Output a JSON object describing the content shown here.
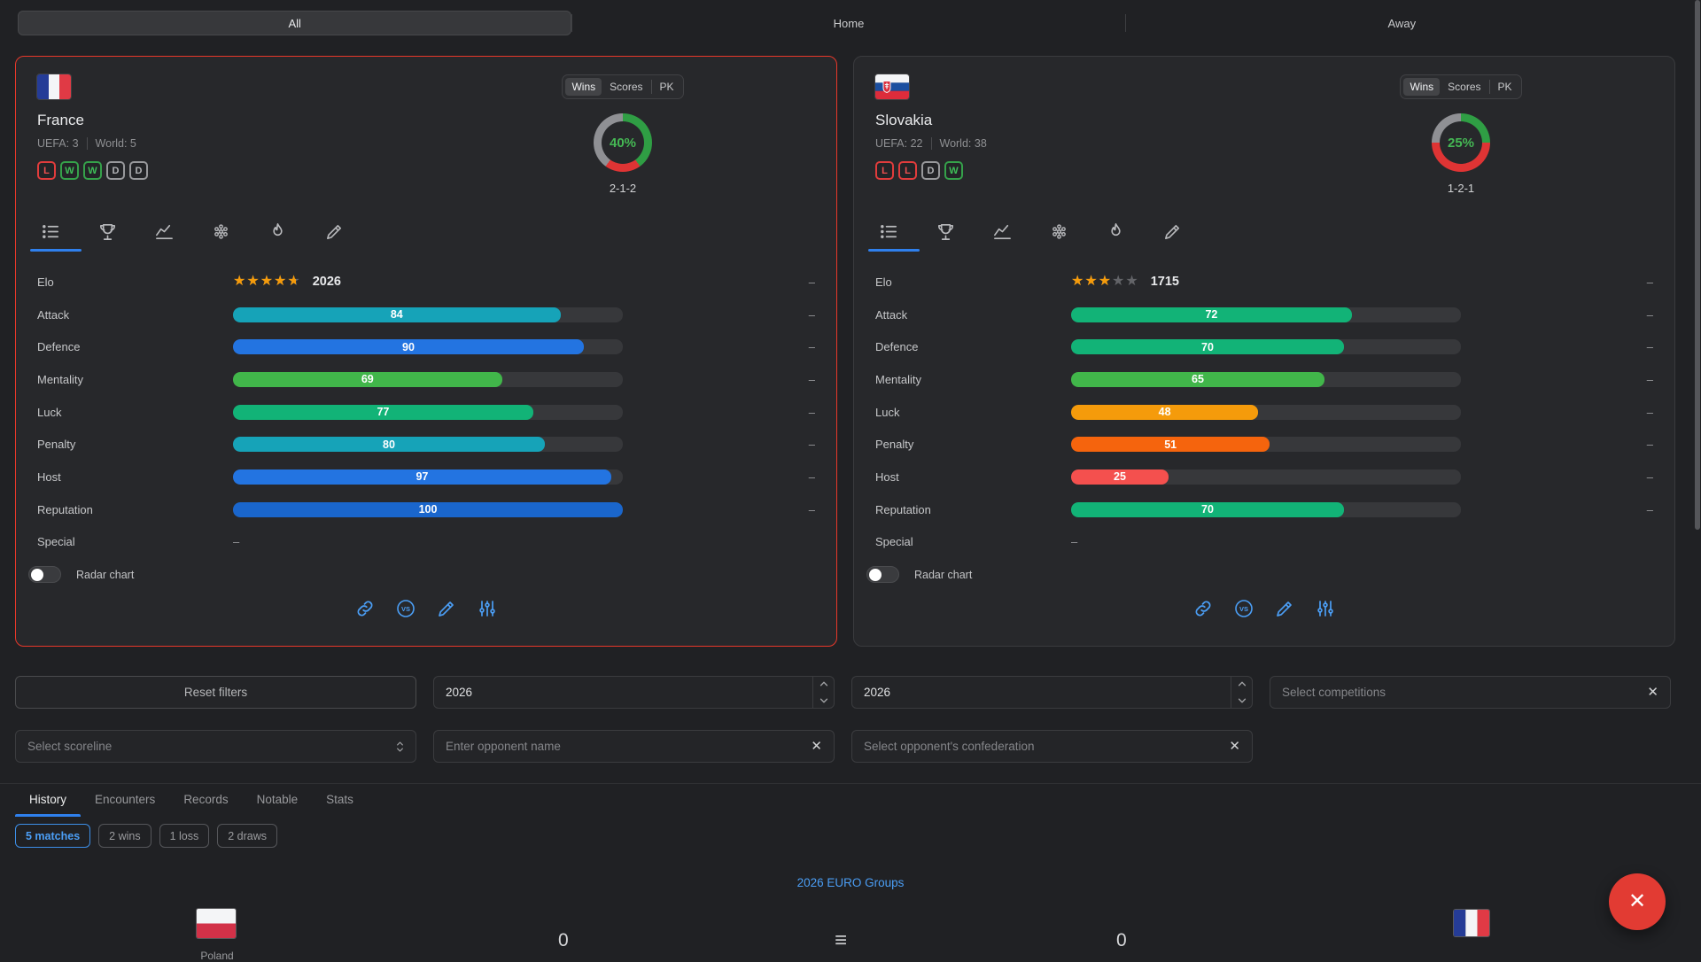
{
  "top_tabs": {
    "all": "All",
    "home": "Home",
    "away": "Away"
  },
  "dash": "–",
  "donut_colors": {
    "win": "#2f9e44",
    "loss": "#df3434",
    "draw": "#8f9094"
  },
  "cards": [
    {
      "name": "France",
      "uefa_rank": "UEFA: 3",
      "world_rank": "World: 5",
      "form": [
        "L",
        "W",
        "W",
        "D",
        "D"
      ],
      "mode_tabs": {
        "wins": "Wins",
        "scores": "Scores",
        "pk": "PK"
      },
      "win_percent": "40%",
      "record": "2-1-2",
      "donut": {
        "win": 40,
        "loss": 20,
        "draw": 40
      },
      "elo": {
        "label": "Elo",
        "value": "2026",
        "stars": 4.65
      },
      "stats": [
        {
          "label": "Attack",
          "value": 84,
          "color": "#16a3b8"
        },
        {
          "label": "Defence",
          "value": 90,
          "color": "#2374e1"
        },
        {
          "label": "Mentality",
          "value": 69,
          "color": "#41b64a"
        },
        {
          "label": "Luck",
          "value": 77,
          "color": "#12b377"
        },
        {
          "label": "Penalty",
          "value": 80,
          "color": "#16a3b8"
        },
        {
          "label": "Host",
          "value": 97,
          "color": "#2374e1"
        },
        {
          "label": "Reputation",
          "value": 100,
          "color": "#1a66cc"
        }
      ],
      "special": {
        "label": "Special",
        "value": "–"
      },
      "radar_label": "Radar chart",
      "border_color": "#e8382a"
    },
    {
      "name": "Slovakia",
      "uefa_rank": "UEFA: 22",
      "world_rank": "World: 38",
      "form": [
        "L",
        "L",
        "D",
        "W"
      ],
      "mode_tabs": {
        "wins": "Wins",
        "scores": "Scores",
        "pk": "PK"
      },
      "win_percent": "25%",
      "record": "1-2-1",
      "donut": {
        "win": 25,
        "loss": 50,
        "draw": 25
      },
      "elo": {
        "label": "Elo",
        "value": "1715",
        "stars": 3
      },
      "stats": [
        {
          "label": "Attack",
          "value": 72,
          "color": "#12b377"
        },
        {
          "label": "Defence",
          "value": 70,
          "color": "#12b377"
        },
        {
          "label": "Mentality",
          "value": 65,
          "color": "#41b64a"
        },
        {
          "label": "Luck",
          "value": 48,
          "color": "#f59b0b"
        },
        {
          "label": "Penalty",
          "value": 51,
          "color": "#f5640d"
        },
        {
          "label": "Host",
          "value": 25,
          "color": "#f4504e"
        },
        {
          "label": "Reputation",
          "value": 70,
          "color": "#12b377"
        }
      ],
      "special": {
        "label": "Special",
        "value": "–"
      },
      "radar_label": "Radar chart",
      "border_color": "#3a3b3e"
    }
  ],
  "filters": {
    "reset": "Reset filters",
    "year_left": "2026",
    "year_right": "2026",
    "competitions_placeholder": "Select competitions",
    "scoreline_placeholder": "Select scoreline",
    "opponent_placeholder": "Enter opponent name",
    "confederation_placeholder": "Select opponent's confederation"
  },
  "history_tabs": [
    {
      "label": "History"
    },
    {
      "label": "Encounters"
    },
    {
      "label": "Records"
    },
    {
      "label": "Notable"
    },
    {
      "label": "Stats"
    }
  ],
  "summary_badges": [
    {
      "label": "5 matches"
    },
    {
      "label": "2 wins"
    },
    {
      "label": "1 loss"
    },
    {
      "label": "2 draws"
    }
  ],
  "groups_link": "2026 EURO Groups",
  "bottom": {
    "left_team": "Poland",
    "left_score": "0",
    "right_score": "0"
  }
}
